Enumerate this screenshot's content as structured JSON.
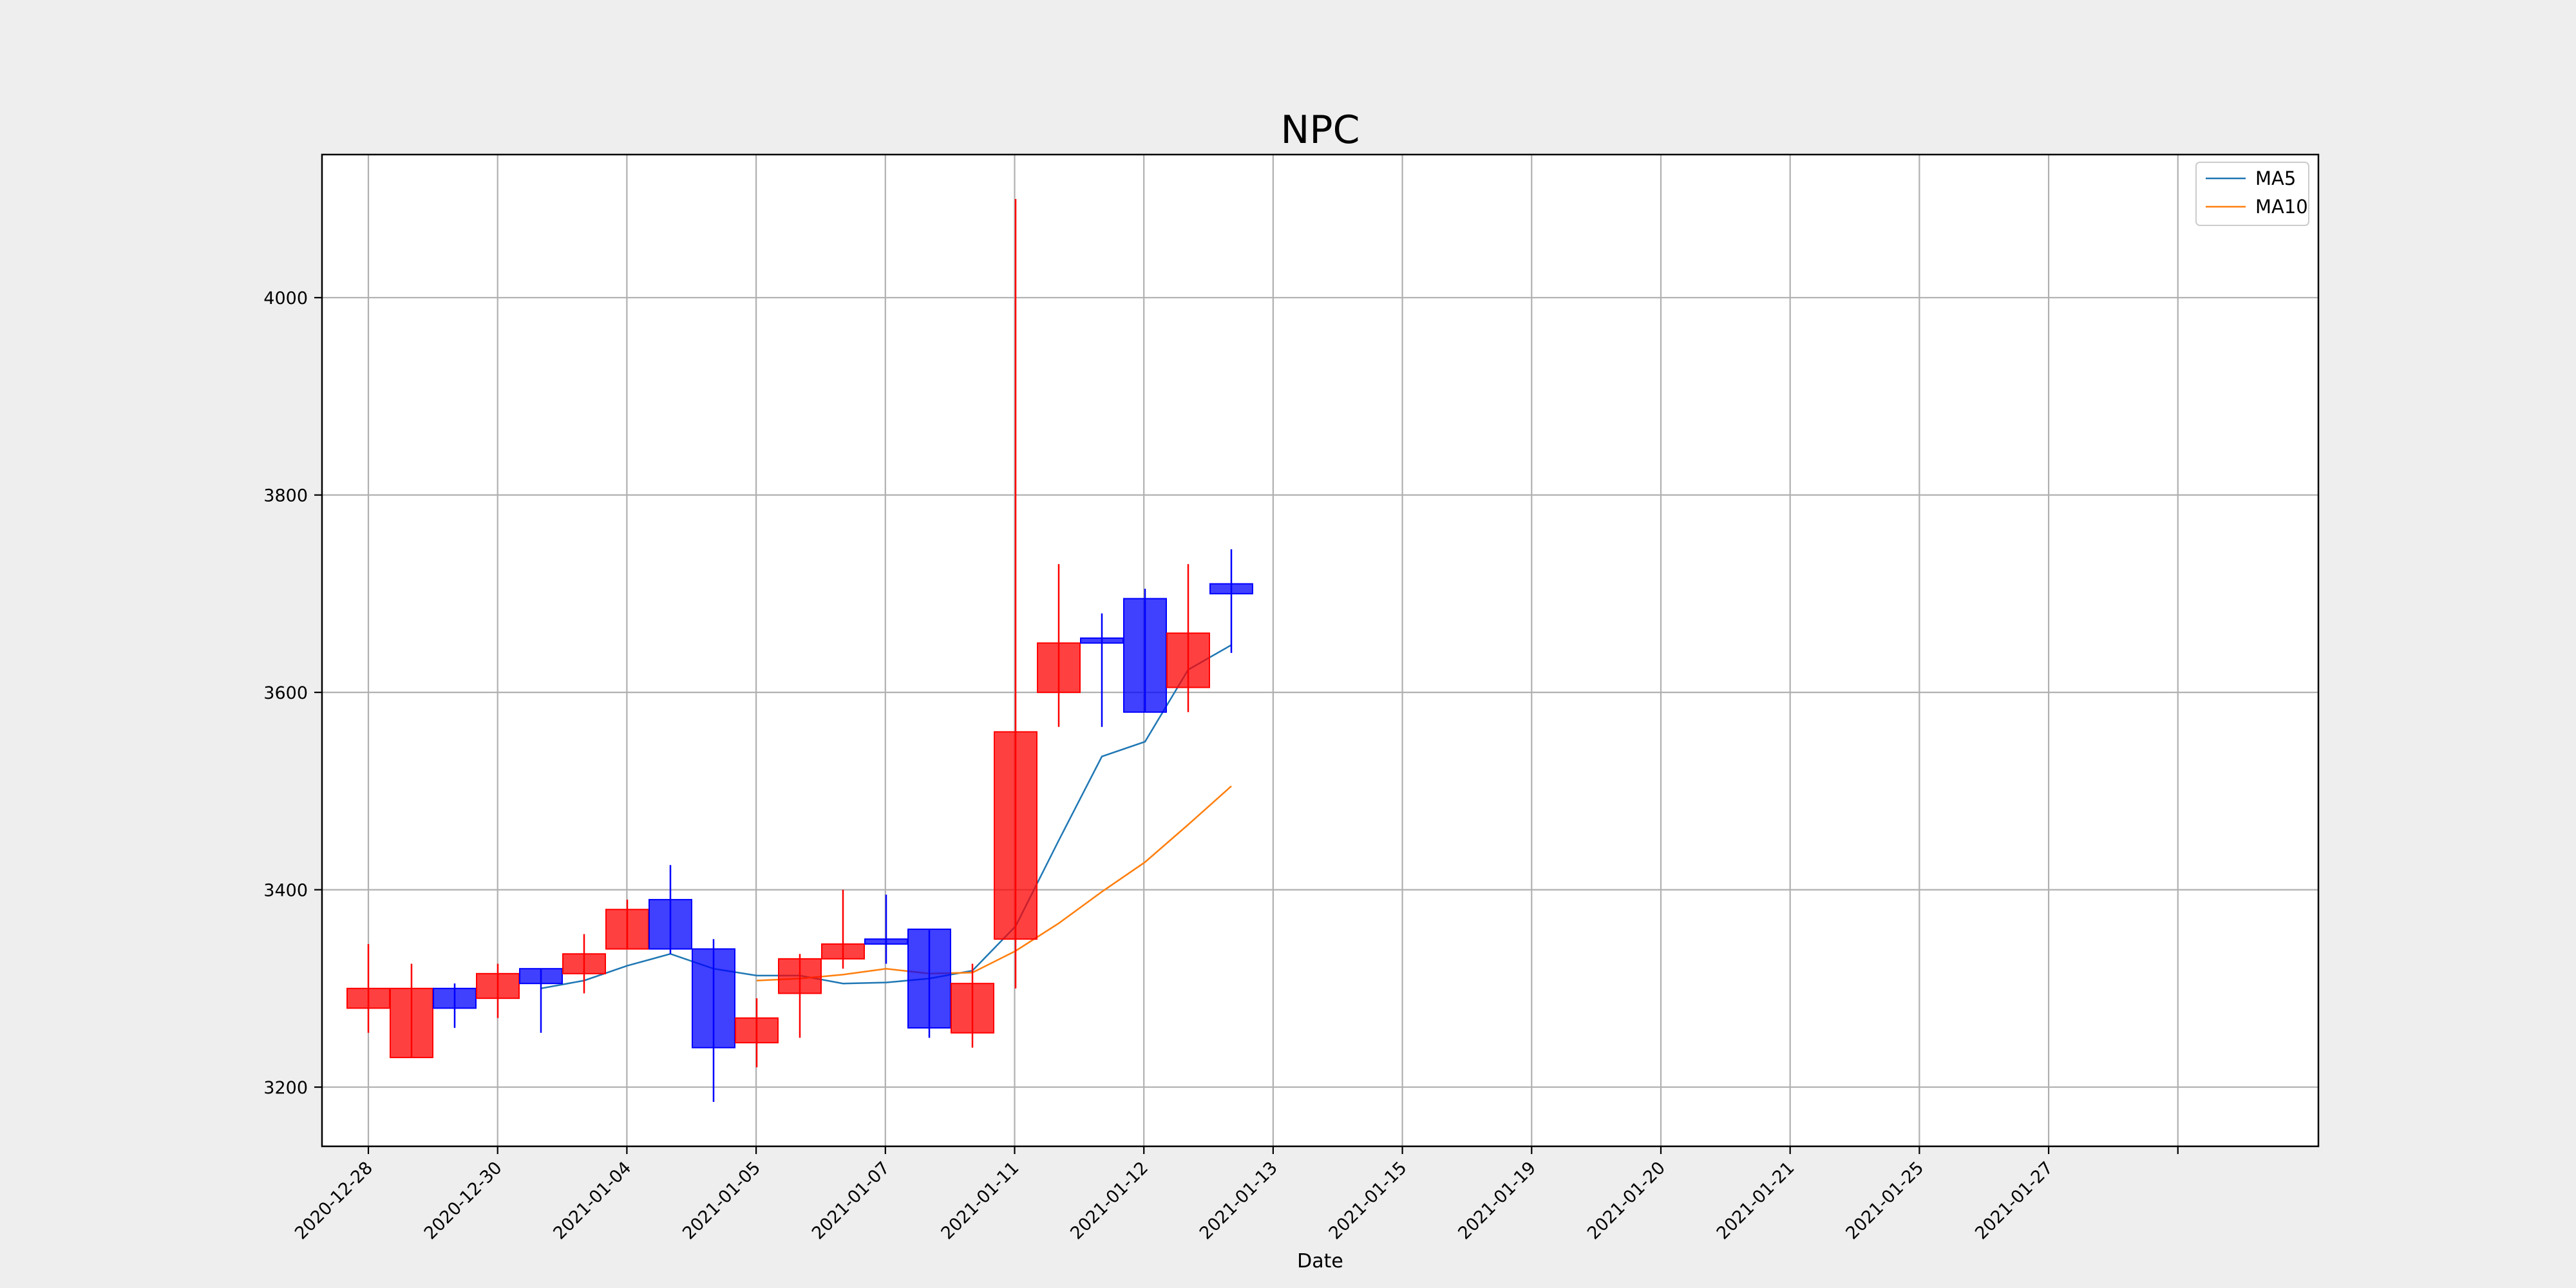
{
  "chart_data": {
    "type": "candlestick",
    "title": "NPC",
    "xlabel": "Date",
    "ylabel": "",
    "ylim": [
      3140,
      4145
    ],
    "yticks": [
      3200,
      3400,
      3600,
      3800,
      4000
    ],
    "grid": true,
    "legend_position": "top-right",
    "colors": {
      "up": "#ff0000",
      "down": "#0000ff",
      "ma5": "#1f77b4",
      "ma10": "#ff7f0e",
      "grid": "#b0b0b0",
      "plot_bg": "#ffffff",
      "figure_bg": "#eeeeee"
    },
    "xtick_labels": [
      "2020-12-28",
      "2020-12-30",
      "2021-01-04",
      "2021-01-05",
      "2021-01-07",
      "2021-01-11",
      "2021-01-12",
      "2021-01-13",
      "2021-01-15",
      "2021-01-19",
      "2021-01-20",
      "2021-01-21",
      "2021-01-25",
      "2021-01-27"
    ],
    "candles": [
      {
        "open": 3300,
        "high": 3345,
        "low": 3255,
        "close": 3280
      },
      {
        "open": 3300,
        "high": 3325,
        "low": 3230,
        "close": 3230
      },
      {
        "open": 3280,
        "high": 3305,
        "low": 3260,
        "close": 3300
      },
      {
        "open": 3315,
        "high": 3325,
        "low": 3270,
        "close": 3290
      },
      {
        "open": 3305,
        "high": 3320,
        "low": 3255,
        "close": 3320
      },
      {
        "open": 3335,
        "high": 3355,
        "low": 3295,
        "close": 3315
      },
      {
        "open": 3380,
        "high": 3390,
        "low": 3340,
        "close": 3340
      },
      {
        "open": 3340,
        "high": 3425,
        "low": 3335,
        "close": 3390
      },
      {
        "open": 3240,
        "high": 3350,
        "low": 3185,
        "close": 3340
      },
      {
        "open": 3270,
        "high": 3290,
        "low": 3220,
        "close": 3245
      },
      {
        "open": 3330,
        "high": 3335,
        "low": 3250,
        "close": 3295
      },
      {
        "open": 3345,
        "high": 3400,
        "low": 3320,
        "close": 3330
      },
      {
        "open": 3345,
        "high": 3395,
        "low": 3325,
        "close": 3350
      },
      {
        "open": 3260,
        "high": 3360,
        "low": 3250,
        "close": 3360
      },
      {
        "open": 3305,
        "high": 3325,
        "low": 3240,
        "close": 3255
      },
      {
        "open": 3560,
        "high": 4100,
        "low": 3300,
        "close": 3350
      },
      {
        "open": 3650,
        "high": 3730,
        "low": 3565,
        "close": 3600
      },
      {
        "open": 3650,
        "high": 3680,
        "low": 3565,
        "close": 3655
      },
      {
        "open": 3580,
        "high": 3705,
        "low": 3580,
        "close": 3695
      },
      {
        "open": 3660,
        "high": 3730,
        "low": 3580,
        "close": 3605
      },
      {
        "open": 3700,
        "high": 3745,
        "low": 3640,
        "close": 3710
      }
    ],
    "series": [
      {
        "name": "MA5",
        "values": [
          null,
          null,
          null,
          null,
          3300,
          3308,
          3323,
          3335,
          3320,
          3313,
          3313,
          3305,
          3306,
          3310,
          3318,
          3363,
          3450,
          3535,
          3550,
          3623,
          3648
        ]
      },
      {
        "name": "MA10",
        "values": [
          null,
          null,
          null,
          null,
          null,
          null,
          null,
          null,
          null,
          3308,
          3310,
          3314,
          3320,
          3315,
          3316,
          3338,
          3366,
          3398,
          3428,
          3466,
          3505
        ]
      }
    ]
  }
}
